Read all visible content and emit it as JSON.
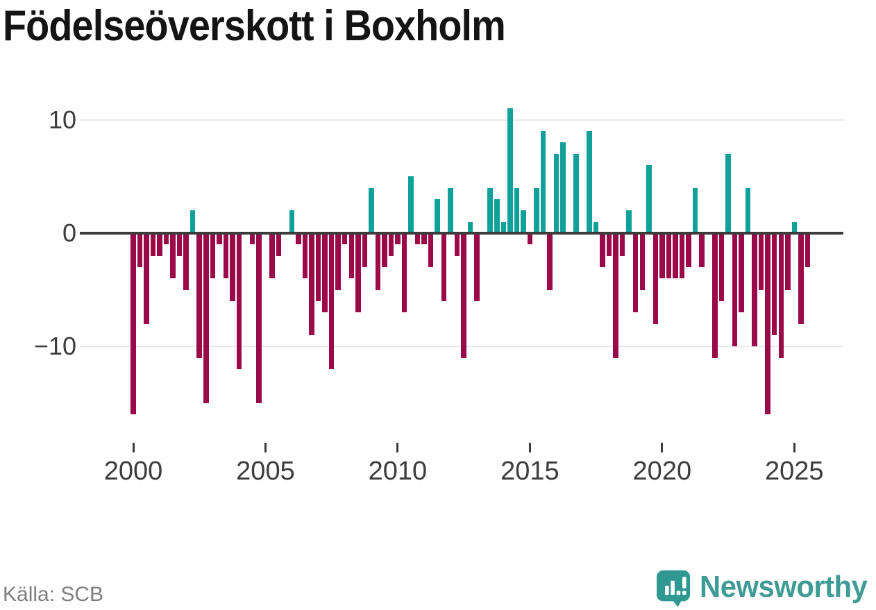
{
  "title": "Födelseöverskott i Boxholm",
  "source": "Källa: SCB",
  "logo": {
    "text": "Newsworthy"
  },
  "colors": {
    "positive_bar": "#12a19a",
    "negative_bar": "#9b0a48",
    "zero_line": "#3c3c3c",
    "gridline": "#e8e8e8",
    "axis_text": "#3c3c3c",
    "title_text": "#141414",
    "source_text": "#7e7e7e",
    "logo_teal": "#3f9b95"
  },
  "y_axis": {
    "ticks": [
      10,
      0,
      -10
    ],
    "labels": [
      "10",
      "0",
      "−10"
    ]
  },
  "x_axis": {
    "tick_years": [
      2000,
      2005,
      2010,
      2015,
      2020,
      2025
    ],
    "labels": [
      "2000",
      "2005",
      "2010",
      "2015",
      "2020",
      "2025"
    ]
  },
  "chart_data": {
    "type": "bar",
    "title": "Födelseöverskott i Boxholm",
    "frequency": "quarterly",
    "start": "2000-Q1",
    "end": "2025-Q3",
    "ylim": [
      -17,
      12
    ],
    "grid_y": [
      10,
      -10
    ],
    "legend": "none",
    "values": [
      -16,
      -3,
      -8,
      -2,
      -2,
      -1,
      -4,
      -2,
      -5,
      2,
      -11,
      -15,
      -4,
      -1,
      -4,
      -6,
      -12,
      0,
      -1,
      -15,
      0,
      -4,
      -2,
      0,
      2,
      -1,
      -4,
      -9,
      -6,
      -7,
      -12,
      -5,
      -1,
      -4,
      -7,
      -3,
      4,
      -5,
      -3,
      -2,
      -1,
      -7,
      5,
      -1,
      -1,
      -3,
      3,
      -6,
      4,
      -2,
      -11,
      1,
      -6,
      0,
      4,
      3,
      1,
      11,
      4,
      2,
      -1,
      4,
      9,
      -5,
      7,
      8,
      0,
      7,
      0,
      9,
      1,
      -3,
      -2,
      -11,
      -2,
      2,
      -7,
      -5,
      6,
      -8,
      -4,
      -4,
      -4,
      -4,
      -3,
      4,
      -3,
      0,
      -11,
      -6,
      7,
      -10,
      -7,
      4,
      -10,
      -5,
      -16,
      -9,
      -11,
      -5,
      1,
      -8,
      -3
    ]
  }
}
